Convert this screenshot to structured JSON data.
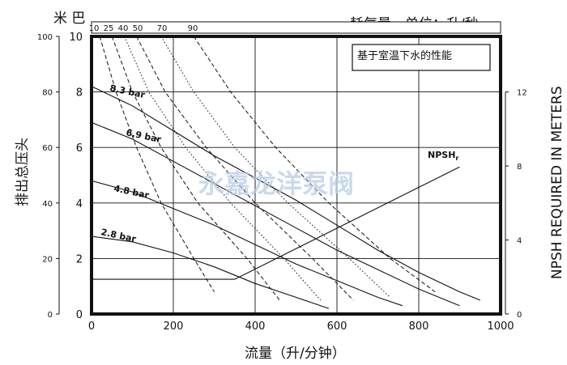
{
  "chart_data": {
    "type": "line",
    "title": "耗气量，单位：升/秒",
    "note": "基于室温下水的性能",
    "watermark": "永嘉龙洋泵阀",
    "x_axis": {
      "label": "流量（升/分钟）",
      "range": [
        0,
        1000
      ],
      "ticks": [
        0,
        200,
        400,
        600,
        800,
        1000
      ]
    },
    "y_left_outer": {
      "label": "排出总压头",
      "range": [
        0,
        100
      ],
      "ticks": [
        0,
        20,
        40,
        60,
        80,
        100
      ]
    },
    "y_left_inner": {
      "label": "米 巴",
      "range": [
        0,
        10
      ],
      "ticks": [
        0,
        2,
        4,
        6,
        8,
        10
      ]
    },
    "y_right": {
      "label": "NPSH REQUIRED IN METERS",
      "range": [
        0,
        15
      ],
      "ticks": [
        0,
        4,
        8,
        12
      ]
    },
    "air_consumption_top_ticks": [
      "10",
      "25",
      "40",
      "50",
      "70",
      "90"
    ],
    "series": [
      {
        "name": "8.3 bar",
        "style": "solid",
        "points": [
          [
            0,
            82
          ],
          [
            100,
            75
          ],
          [
            200,
            66
          ],
          [
            300,
            57
          ],
          [
            400,
            49
          ],
          [
            500,
            41
          ],
          [
            600,
            32
          ],
          [
            700,
            23
          ],
          [
            800,
            15
          ],
          [
            900,
            8
          ],
          [
            950,
            5
          ]
        ]
      },
      {
        "name": "6.9 bar",
        "style": "solid",
        "points": [
          [
            0,
            69
          ],
          [
            100,
            63
          ],
          [
            200,
            55
          ],
          [
            300,
            47
          ],
          [
            400,
            39
          ],
          [
            500,
            31
          ],
          [
            600,
            23
          ],
          [
            700,
            16
          ],
          [
            800,
            9
          ],
          [
            900,
            3
          ]
        ]
      },
      {
        "name": "4.8 bar",
        "style": "solid",
        "points": [
          [
            0,
            48
          ],
          [
            100,
            44
          ],
          [
            200,
            38
          ],
          [
            300,
            32
          ],
          [
            400,
            25
          ],
          [
            500,
            18
          ],
          [
            600,
            12
          ],
          [
            700,
            6
          ],
          [
            760,
            3
          ]
        ]
      },
      {
        "name": "2.8 bar",
        "style": "solid",
        "points": [
          [
            0,
            28
          ],
          [
            100,
            26
          ],
          [
            200,
            22
          ],
          [
            300,
            17
          ],
          [
            400,
            11
          ],
          [
            500,
            6
          ],
          [
            580,
            2
          ]
        ]
      },
      {
        "name": "NPSHr",
        "style": "solid",
        "points": [
          [
            0,
            12.5
          ],
          [
            350,
            12.5
          ],
          [
            900,
            53
          ]
        ]
      },
      {
        "name": "10",
        "style": "dashed",
        "points": [
          [
            20,
            100
          ],
          [
            60,
            80
          ],
          [
            110,
            60
          ],
          [
            170,
            40
          ],
          [
            250,
            20
          ],
          [
            300,
            8
          ]
        ]
      },
      {
        "name": "25",
        "style": "dashed",
        "points": [
          [
            50,
            100
          ],
          [
            100,
            80
          ],
          [
            170,
            60
          ],
          [
            260,
            40
          ],
          [
            380,
            20
          ],
          [
            460,
            5
          ]
        ]
      },
      {
        "name": "40",
        "style": "dotted",
        "points": [
          [
            80,
            100
          ],
          [
            140,
            80
          ],
          [
            230,
            60
          ],
          [
            340,
            40
          ],
          [
            470,
            20
          ],
          [
            560,
            5
          ]
        ]
      },
      {
        "name": "50",
        "style": "dashed",
        "points": [
          [
            110,
            100
          ],
          [
            180,
            80
          ],
          [
            280,
            60
          ],
          [
            400,
            40
          ],
          [
            540,
            20
          ],
          [
            640,
            5
          ]
        ]
      },
      {
        "name": "70",
        "style": "dotted",
        "points": [
          [
            170,
            100
          ],
          [
            250,
            80
          ],
          [
            350,
            60
          ],
          [
            480,
            40
          ],
          [
            630,
            20
          ],
          [
            730,
            6
          ]
        ]
      },
      {
        "name": "90",
        "style": "dashed",
        "points": [
          [
            250,
            100
          ],
          [
            340,
            80
          ],
          [
            450,
            60
          ],
          [
            580,
            40
          ],
          [
            730,
            20
          ],
          [
            840,
            8
          ]
        ]
      }
    ]
  }
}
